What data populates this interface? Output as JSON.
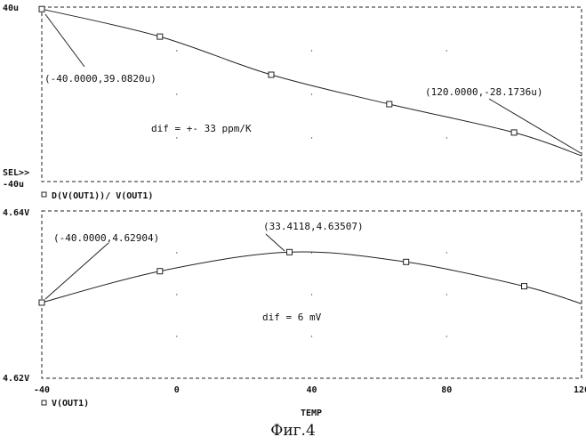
{
  "figure_caption": "Фиг.4",
  "chart_data": [
    {
      "type": "line",
      "y_top_label": "40u",
      "y_bottom_label": "-40u",
      "ylim": [
        -40,
        40
      ],
      "xlim": [
        -40,
        120
      ],
      "grid": true,
      "sel_label": "SEL>>",
      "series": [
        {
          "name": "D(V(OUT1))/ V(OUT1)",
          "x": [
            -40,
            -5,
            28,
            63,
            100,
            120
          ],
          "y": [
            39.082,
            26.5,
            9.0,
            -4.5,
            -17.5,
            -28.1736
          ]
        }
      ],
      "annotations": [
        {
          "text": "(-40.0000,39.0820u)",
          "x": -40,
          "y": 39.082
        },
        {
          "text": "(120.0000,-28.1736u)",
          "x": 120,
          "y": -28.1736
        }
      ],
      "note": "dif = +- 33 ppm/K"
    },
    {
      "type": "line",
      "y_top_label": "4.64V",
      "y_bottom_label": "4.62V",
      "ylim": [
        4.62,
        4.64
      ],
      "xlim": [
        -40,
        120
      ],
      "xticks": [
        -40,
        0,
        40,
        80,
        120
      ],
      "xlabel": "TEMP",
      "grid": true,
      "series": [
        {
          "name": "V(OUT1)",
          "x": [
            -40,
            -5,
            33.4118,
            68,
            103,
            120
          ],
          "y": [
            4.62904,
            4.6328,
            4.63507,
            4.6339,
            4.631,
            4.6289
          ]
        }
      ],
      "annotations": [
        {
          "text": "(-40.0000,4.62904)",
          "x": -40,
          "y": 4.62904
        },
        {
          "text": "(33.4118,4.63507)",
          "x": 33.4118,
          "y": 4.63507
        }
      ],
      "note": "dif = 6 mV"
    }
  ]
}
